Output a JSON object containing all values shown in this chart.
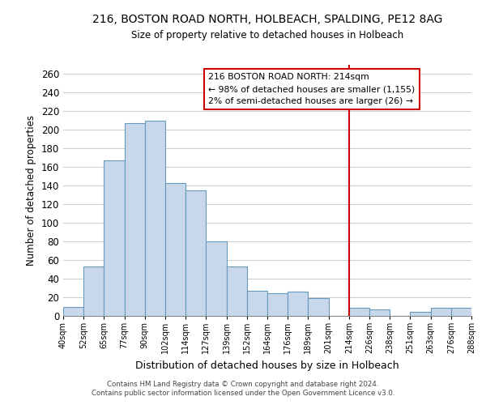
{
  "title": "216, BOSTON ROAD NORTH, HOLBEACH, SPALDING, PE12 8AG",
  "subtitle": "Size of property relative to detached houses in Holbeach",
  "xlabel": "Distribution of detached houses by size in Holbeach",
  "ylabel": "Number of detached properties",
  "bin_labels": [
    "40sqm",
    "52sqm",
    "65sqm",
    "77sqm",
    "90sqm",
    "102sqm",
    "114sqm",
    "127sqm",
    "139sqm",
    "152sqm",
    "164sqm",
    "176sqm",
    "189sqm",
    "201sqm",
    "214sqm",
    "226sqm",
    "238sqm",
    "251sqm",
    "263sqm",
    "276sqm",
    "288sqm"
  ],
  "bar_heights": [
    10,
    53,
    167,
    207,
    210,
    143,
    135,
    80,
    53,
    27,
    24,
    26,
    19,
    0,
    9,
    7,
    0,
    4,
    9,
    9
  ],
  "bar_color": "#c8d8ea",
  "bar_edge_color": "#6699bb",
  "ylim": [
    0,
    270
  ],
  "yticks": [
    0,
    20,
    40,
    60,
    80,
    100,
    120,
    140,
    160,
    180,
    200,
    220,
    240,
    260
  ],
  "vline_x_index": 14,
  "vline_color": "#cc0000",
  "annotation_title": "216 BOSTON ROAD NORTH: 214sqm",
  "annotation_line1": "← 98% of detached houses are smaller (1,155)",
  "annotation_line2": "2% of semi-detached houses are larger (26) →",
  "annotation_box_color": "#ffffff",
  "annotation_box_edge": "#cc0000",
  "footer1": "Contains HM Land Registry data © Crown copyright and database right 2024.",
  "footer2": "Contains public sector information licensed under the Open Government Licence v3.0.",
  "background_color": "#ffffff",
  "grid_color": "#cccccc"
}
